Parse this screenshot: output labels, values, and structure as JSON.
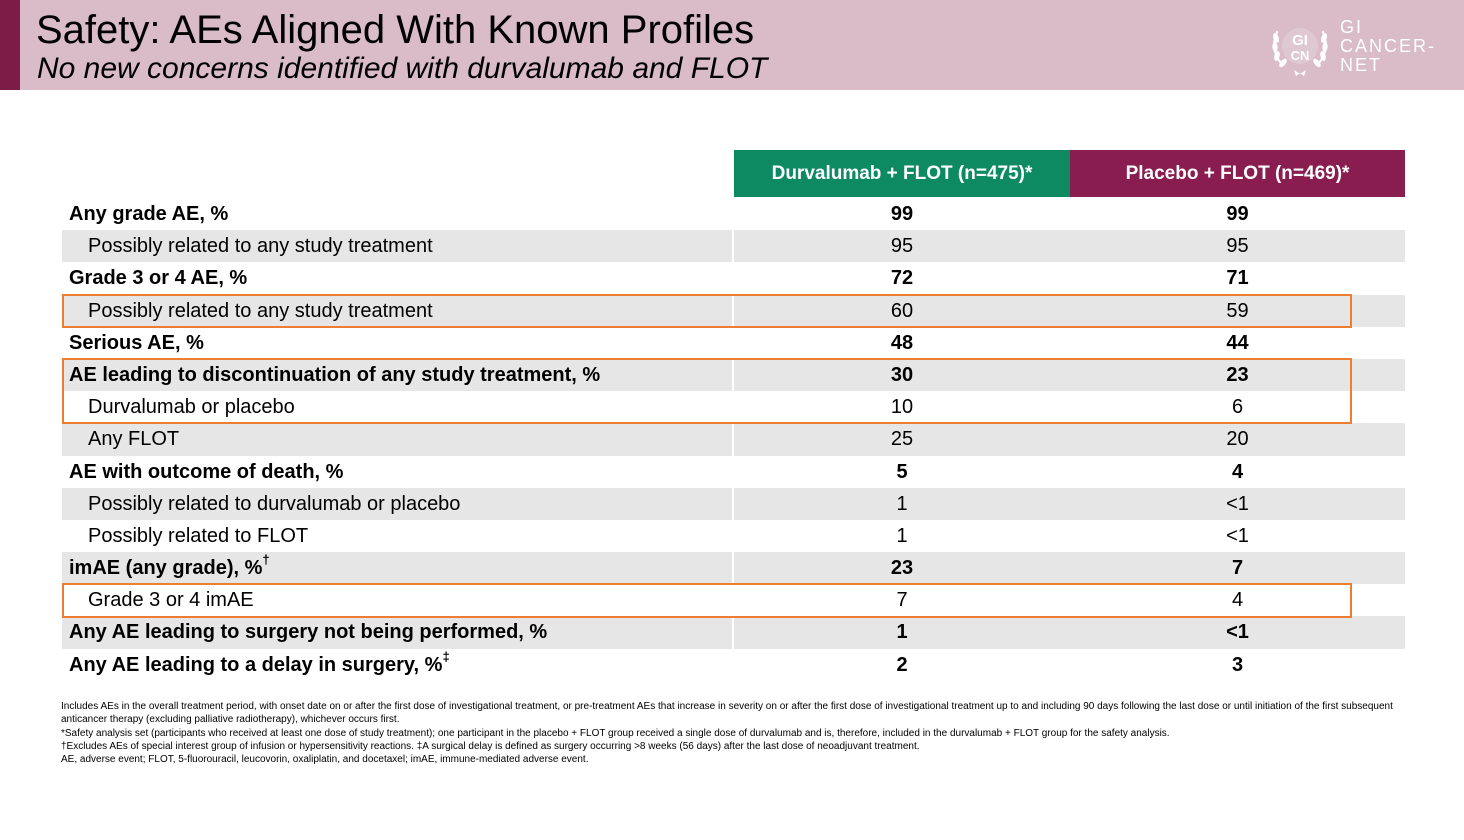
{
  "header": {
    "title": "Safety: AEs Aligned With Known Profiles",
    "subtitle": "No new concerns identified with durvalumab and FLOT",
    "accent_color": "#7d1d47",
    "background_color": "#d9bcc8"
  },
  "logo": {
    "monogram_top": "GI",
    "monogram_bottom": "CN",
    "text_lines": [
      "GI",
      "CANCER-",
      "NET"
    ]
  },
  "table": {
    "columns": [
      {
        "label": "Durvalumab + FLOT (n=475)*",
        "color": "#0e8a63"
      },
      {
        "label": "Placebo + FLOT (n=469)*",
        "color": "#8a1d50"
      }
    ],
    "rows": [
      {
        "label": "Any grade AE, %",
        "sup": "",
        "durvalumab": "99",
        "placebo": "99"
      },
      {
        "label": "Possibly related to any study treatment",
        "sup": "",
        "durvalumab": "95",
        "placebo": "95"
      },
      {
        "label": "Grade 3 or 4 AE, %",
        "sup": "",
        "durvalumab": "72",
        "placebo": "71"
      },
      {
        "label": "Possibly related to any study treatment",
        "sup": "",
        "durvalumab": "60",
        "placebo": "59"
      },
      {
        "label": "Serious AE, %",
        "sup": "",
        "durvalumab": "48",
        "placebo": "44"
      },
      {
        "label": "AE leading to discontinuation of any study treatment, %",
        "sup": "",
        "durvalumab": "30",
        "placebo": "23"
      },
      {
        "label": "Durvalumab or placebo",
        "sup": "",
        "durvalumab": "10",
        "placebo": "6"
      },
      {
        "label": "Any FLOT",
        "sup": "",
        "durvalumab": "25",
        "placebo": "20"
      },
      {
        "label": "AE with outcome of death, %",
        "sup": "",
        "durvalumab": "5",
        "placebo": "4"
      },
      {
        "label": "Possibly related to durvalumab or placebo",
        "sup": "",
        "durvalumab": "1",
        "placebo": "<1"
      },
      {
        "label": "Possibly related to FLOT",
        "sup": "",
        "durvalumab": "1",
        "placebo": "<1"
      },
      {
        "label": "imAE (any grade), %",
        "sup": "†",
        "durvalumab": "23",
        "placebo": "7"
      },
      {
        "label": "Grade 3 or 4 imAE",
        "sup": "",
        "durvalumab": "7",
        "placebo": "4"
      },
      {
        "label": "Any AE leading to surgery not being performed, %",
        "sup": "",
        "durvalumab": "1",
        "placebo": "<1"
      },
      {
        "label": "Any AE leading to a delay in surgery, %",
        "sup": "‡",
        "durvalumab": "2",
        "placebo": "3"
      }
    ],
    "highlight_color": "#ed7d31"
  },
  "footnotes": [
    "Includes AEs in the overall treatment period, with onset date on or after the first dose of investigational treatment, or pre-treatment AEs that increase in severity on or after the first dose of investigational treatment up to and including 90 days following the last dose or until initiation of the first subsequent anticancer therapy (excluding palliative radiotherapy), whichever occurs first.",
    "*Safety analysis set (participants who received at least one dose of study treatment); one participant in the placebo + FLOT group received a single dose of durvalumab and is, therefore, included in the durvalumab + FLOT group for the safety analysis.",
    "†Excludes AEs of special interest group of infusion or hypersensitivity reactions. ‡A surgical delay is defined as surgery occurring >8 weeks (56 days) after the last dose of neoadjuvant treatment.",
    "AE, adverse event; FLOT, 5-fluorouracil, leucovorin, oxaliplatin, and docetaxel; imAE, immune-mediated adverse event."
  ]
}
